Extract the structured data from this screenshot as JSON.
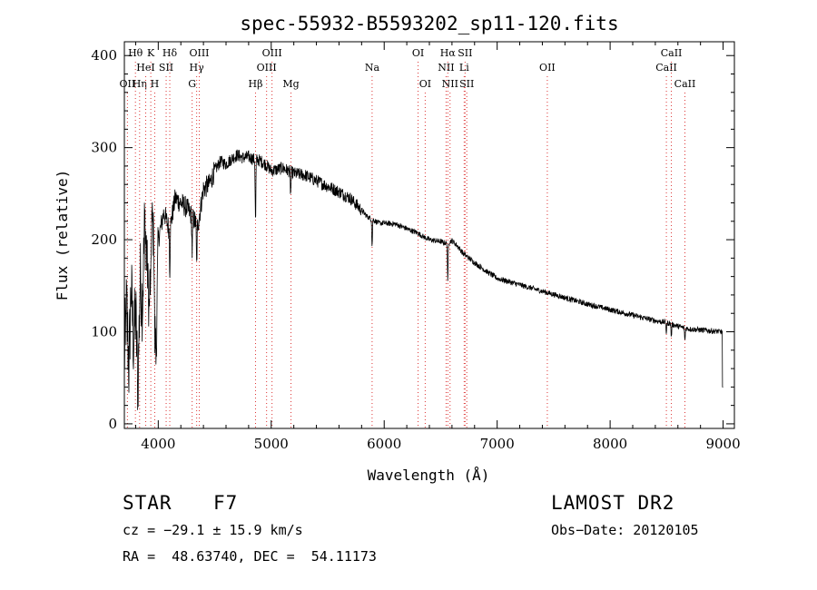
{
  "chart_data": {
    "type": "line",
    "title": "spec-55932-B5593202_sp11-120.fits",
    "xlabel": "Wavelength (Å)",
    "ylabel": "Flux (relative)",
    "xlim": [
      3700,
      9100
    ],
    "ylim": [
      -5,
      415
    ],
    "x_ticks": [
      4000,
      5000,
      6000,
      7000,
      8000,
      9000
    ],
    "y_ticks": [
      0,
      100,
      200,
      300,
      400
    ],
    "grid": false,
    "series": [
      {
        "x": [
          3700,
          3720,
          3740,
          3760,
          3780,
          3800,
          3820,
          3840,
          3860,
          3880,
          3900,
          3920,
          3940,
          3960,
          3980,
          4000,
          4050,
          4100,
          4150,
          4200,
          4250,
          4300,
          4350,
          4400,
          4450,
          4500,
          4550,
          4600,
          4650,
          4700,
          4750,
          4800,
          4850,
          4900,
          4950,
          5000,
          5050,
          5100,
          5150,
          5200,
          5300,
          5400,
          5500,
          5600,
          5700,
          5800,
          5850,
          5900,
          5950,
          6000,
          6100,
          6200,
          6300,
          6350,
          6400,
          6500,
          6550,
          6600,
          6650,
          6700,
          6800,
          6900,
          7000,
          7200,
          7400,
          7600,
          7800,
          8000,
          8200,
          8400,
          8500,
          8600,
          8700,
          8800,
          8900,
          8980,
          9000
        ],
        "y": [
          70,
          130,
          60,
          150,
          90,
          120,
          40,
          160,
          130,
          220,
          180,
          120,
          230,
          200,
          70,
          200,
          230,
          210,
          245,
          240,
          235,
          225,
          215,
          255,
          260,
          275,
          285,
          282,
          288,
          292,
          289,
          290,
          287,
          286,
          282,
          275,
          276,
          278,
          275,
          272,
          270,
          264,
          258,
          252,
          245,
          232,
          225,
          222,
          218,
          218,
          217,
          212,
          207,
          203,
          200,
          198,
          196,
          199,
          193,
          185,
          175,
          166,
          158,
          151,
          144,
          137,
          130,
          124,
          118,
          112,
          110,
          106,
          103,
          102,
          101,
          100,
          100
        ]
      }
    ],
    "absorption_dips": [
      {
        "x": 3934,
        "depth": 60
      },
      {
        "x": 3969,
        "depth": 50
      },
      {
        "x": 4102,
        "depth": 45
      },
      {
        "x": 4300,
        "depth": 40
      },
      {
        "x": 4340,
        "depth": 45
      },
      {
        "x": 4861,
        "depth": 70
      },
      {
        "x": 5172,
        "depth": 25
      },
      {
        "x": 5893,
        "depth": 30
      },
      {
        "x": 6563,
        "depth": 45
      },
      {
        "x": 8498,
        "depth": 12
      },
      {
        "x": 8542,
        "depth": 15
      },
      {
        "x": 8662,
        "depth": 14
      }
    ],
    "line_markers": [
      {
        "x": 3727,
        "label": "OII",
        "row": 2
      },
      {
        "x": 3798,
        "label": "Hθ",
        "row": 0
      },
      {
        "x": 3835,
        "label": "Hη",
        "row": 2
      },
      {
        "x": 3889,
        "label": "HeI",
        "row": 1
      },
      {
        "x": 3934,
        "label": "K",
        "row": 0
      },
      {
        "x": 3969,
        "label": "H",
        "row": 2
      },
      {
        "x": 4070,
        "label": "SII",
        "row": 1
      },
      {
        "x": 4102,
        "label": "Hδ",
        "row": 0
      },
      {
        "x": 4300,
        "label": "G",
        "row": 2
      },
      {
        "x": 4340,
        "label": "Hγ",
        "row": 1
      },
      {
        "x": 4363,
        "label": "OIII",
        "row": 0
      },
      {
        "x": 4861,
        "label": "Hβ",
        "row": 2
      },
      {
        "x": 4959,
        "label": "OIII",
        "row": 1
      },
      {
        "x": 5007,
        "label": "OIII",
        "row": 0
      },
      {
        "x": 5175,
        "label": "Mg",
        "row": 2
      },
      {
        "x": 5893,
        "label": "Na",
        "row": 1
      },
      {
        "x": 6300,
        "label": "OI",
        "row": 0
      },
      {
        "x": 6363,
        "label": "OI",
        "row": 2
      },
      {
        "x": 6548,
        "label": "NII",
        "row": 1
      },
      {
        "x": 6563,
        "label": "Hα",
        "row": 0
      },
      {
        "x": 6583,
        "label": "NII",
        "row": 2
      },
      {
        "x": 6708,
        "label": "Li",
        "row": 1
      },
      {
        "x": 6716,
        "label": "SII",
        "row": 0
      },
      {
        "x": 6731,
        "label": "SII",
        "row": 2
      },
      {
        "x": 7444,
        "label": "OII",
        "row": 1
      },
      {
        "x": 8498,
        "label": "CaII",
        "row": 1
      },
      {
        "x": 8542,
        "label": "CaII",
        "row": 0
      },
      {
        "x": 8662,
        "label": "CaII",
        "row": 2
      }
    ]
  },
  "info": {
    "object_class": "STAR",
    "subclass": "F7",
    "survey": "LAMOST DR2",
    "cz": "cz = −29.1 ± 15.9 km/s",
    "obs_date": "Obs−Date: 20120105",
    "coords": "RA =  48.63740, DEC =  54.11173"
  }
}
